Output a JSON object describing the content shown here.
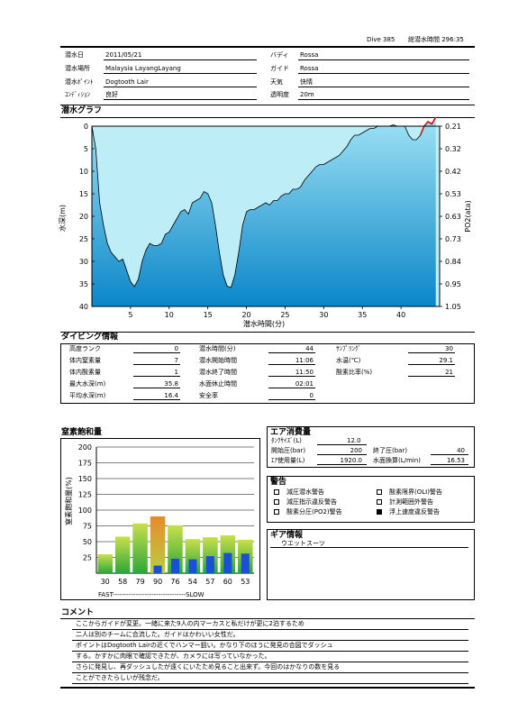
{
  "header": {
    "dive_no": "Dive 385",
    "total_time": "総潜水時間 296:35"
  },
  "info": {
    "date_label": "潜水日",
    "date": "2011/05/21",
    "place_label": "潜水場所",
    "place": "Malaysia LayangLayang",
    "point_label": "潜水ﾎﾟｲﾝﾄ",
    "point": "Dogtooth Lair",
    "cond_label": "ｺﾝﾃﾞｨｼｮﾝ",
    "cond": "良好",
    "buddy_label": "バディ",
    "buddy": "Rossa",
    "guide_label": "ガイド",
    "guide": "Rossa",
    "weather_label": "天気",
    "weather": "快晴",
    "vis_label": "透明度",
    "vis": "20m"
  },
  "graph": {
    "title": "潜水グラフ"
  },
  "chart_data": [
    {
      "type": "area",
      "xlabel": "潜水時間(分)",
      "ylabel": "水深(m)",
      "y2label": "PO2(ata)",
      "xlim": [
        0,
        45
      ],
      "ylim": [
        0,
        40
      ],
      "xticks": [
        "5",
        "10",
        "15",
        "20",
        "25",
        "30",
        "35",
        "40"
      ],
      "yticks": [
        "0",
        "5",
        "10",
        "15",
        "20",
        "25",
        "30",
        "35",
        "40"
      ],
      "y2ticks": [
        "0.21",
        "0.32",
        "0.42",
        "0.53",
        "0.63",
        "0.73",
        "0.84",
        "0.95",
        "1.05"
      ],
      "x": [
        0,
        0.5,
        1,
        1.5,
        2,
        2.5,
        3,
        3.5,
        4,
        4.5,
        5,
        5.5,
        6,
        6.5,
        7,
        7.5,
        8,
        8.5,
        9,
        9.5,
        10,
        10.5,
        11,
        11.5,
        12,
        12.5,
        13,
        13.5,
        14,
        14.5,
        15,
        15.5,
        16,
        16.5,
        17,
        17.5,
        18,
        18.5,
        19,
        19.5,
        20,
        20.5,
        21,
        21.5,
        22,
        22.5,
        23,
        23.5,
        24,
        24.5,
        25,
        25.5,
        26,
        26.5,
        27,
        27.5,
        28,
        28.5,
        29,
        29.5,
        30,
        30.5,
        31,
        31.5,
        32,
        32.5,
        33,
        33.5,
        34,
        34.5,
        35,
        35.5,
        36,
        36.5,
        37,
        37.5,
        38,
        38.5,
        39,
        39.5,
        40,
        40.5,
        41,
        41.5,
        42,
        42.5,
        43,
        43.5,
        44,
        44.5
      ],
      "depth": [
        0,
        5,
        17,
        22,
        26,
        28,
        29,
        30,
        29.5,
        32,
        34.5,
        35.6,
        34,
        30,
        27.5,
        26,
        26.5,
        26.5,
        26,
        24,
        23.5,
        22,
        20.5,
        19,
        18.5,
        19.5,
        17,
        16.5,
        16,
        14.5,
        15,
        17,
        22,
        28,
        33,
        35.5,
        35.8,
        33,
        28,
        22,
        19,
        18.5,
        18.5,
        18,
        17.5,
        17,
        17.5,
        16.5,
        16.5,
        15.5,
        15,
        15,
        14,
        14,
        13.5,
        12,
        11,
        10,
        9,
        8.5,
        8.5,
        8,
        7.5,
        7,
        6.5,
        5.5,
        4.5,
        3,
        2,
        2,
        1.5,
        1,
        0.5,
        0.5,
        0,
        0,
        0,
        0,
        -0.3,
        0,
        0,
        0,
        2,
        3,
        3,
        2,
        0,
        -1,
        -0.5,
        -2
      ],
      "ascent_warning": [
        42.5,
        45
      ]
    },
    {
      "type": "bar",
      "title": "窒素飽和量",
      "ylabel": "窒素飽和量(%)",
      "ylim": [
        0,
        200
      ],
      "yticks": [
        "200",
        "175",
        "150",
        "125",
        "100",
        "75",
        "50",
        "25"
      ],
      "categories": [
        "30",
        "58",
        "79",
        "90",
        "76",
        "54",
        "57",
        "60",
        "53"
      ],
      "green_values": [
        30,
        58,
        79,
        90,
        76,
        54,
        57,
        60,
        53
      ],
      "blue_values": [
        0,
        0,
        0,
        12,
        23,
        22,
        27,
        32,
        31
      ],
      "xlabel": "FAST--------------------------------SLOW"
    }
  ],
  "diving": {
    "title": "ダイビング情報",
    "alt_label": "高度ランク",
    "alt": "0",
    "n2_label": "体内窒素量",
    "n2": "7",
    "o2_label": "体内酸素量",
    "o2": "1",
    "maxd_label": "最大水深(m)",
    "maxd": "35.8",
    "avgd_label": "平均水深(m)",
    "avgd": "16.4",
    "time_label": "潜水時間(分)",
    "time": "44",
    "start_label": "潜水開始時間",
    "start": "11:06",
    "end_label": "潜水終了時間",
    "end": "11:50",
    "rest_label": "水面休止時間",
    "rest": "02:01",
    "safety_label": "安全率",
    "safety": "0",
    "sampling_label": "ｻﾝﾌﾟﾘﾝｸﾞ",
    "sampling": "30",
    "temp_label": "水温(℃)",
    "temp": "29.1",
    "oxy_label": "酸素比率(%)",
    "oxy": "21"
  },
  "air": {
    "title": "エア消費量",
    "tank_label": "ﾀﾝｸｻｲｽﾞ(L)",
    "tank": "12.0",
    "startp_label": "開始圧(bar)",
    "startp": "200",
    "endp_label": "終了圧(bar)",
    "endp": "40",
    "used_label": "ｴｱ使用量(L)",
    "used": "1920.0",
    "surf_label": "水面換算(L/min)",
    "surf": "16.53"
  },
  "warnings": {
    "title": "警告",
    "w1": "減圧潜水警告",
    "w2": "減圧指示違反警告",
    "w3": "酸素分圧(PO2)警告",
    "w4": "酸素限界(OLI)警告",
    "w5": "計測範囲外警告",
    "w6": "浮上速度違反警告"
  },
  "gear": {
    "title": "ギア情報",
    "item": "ウエットスーツ"
  },
  "comment": {
    "title": "コメント",
    "lines": [
      "ここからガイドが変更。一緒に来た9人の内マーカスと私だけが更に2泊するため",
      "二人は別のチームに合流した。ガイドはかわいい女性だ。",
      "ポイントはDogtooth Lairの近くでハンマー狙い。かなり下のほうに発見の合図でダッシュ",
      "する。かすかに肉眼で確認できたが、カメラには写っていなかった。",
      "さらに発見し、再ダッシュしたが遠くにいたため見ること出来ず。今回のはかなりの数を見る",
      "ことができたらしいが残念だ。"
    ]
  },
  "colors": {
    "sky": "#bdeef8",
    "water_top": "#8fdcf2",
    "water_bottom": "#0b86c8",
    "warn": "#cc1111",
    "bar_green_top": "#c8e04a",
    "bar_green_bottom": "#2ea53a",
    "bar_blue": "#1a4fd8",
    "bar_orange": "#e88a2a"
  }
}
